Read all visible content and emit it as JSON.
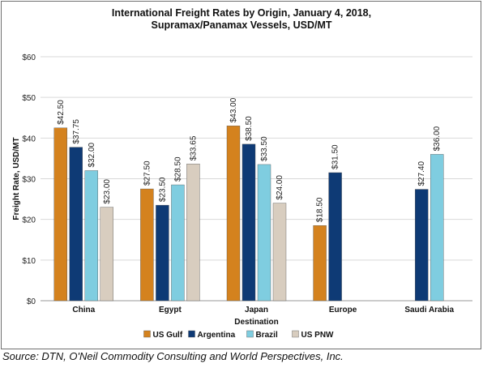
{
  "chart_data": {
    "type": "bar",
    "title_lines": [
      "International Freight Rates by Origin, January 4, 2018,",
      "Supramax/Panamax Vessels, USD/MT"
    ],
    "xlabel": "Destination",
    "ylabel": "Freight Rate, USD/MT",
    "categories": [
      "China",
      "Egypt",
      "Japan",
      "Europe",
      "Saudi Arabia"
    ],
    "ylim": [
      0,
      60
    ],
    "yticks": [
      0,
      10,
      20,
      30,
      40,
      50,
      60
    ],
    "ytick_labels": [
      "$0",
      "$10",
      "$20",
      "$30",
      "$40",
      "$50",
      "$60"
    ],
    "grid": true,
    "legend_position": "bottom",
    "value_label_prefix": "$",
    "series": [
      {
        "name": "US Gulf",
        "color": "#d4821e",
        "values": [
          42.5,
          27.5,
          43.0,
          18.5,
          null
        ]
      },
      {
        "name": "Argentina",
        "color": "#0e3a75",
        "values": [
          37.75,
          23.5,
          38.5,
          31.5,
          27.4
        ]
      },
      {
        "name": "Brazil",
        "color": "#7fcde0",
        "values": [
          32.0,
          28.5,
          33.5,
          null,
          36.0
        ]
      },
      {
        "name": "US PNW",
        "color": "#d8cdbf",
        "values": [
          23.0,
          33.65,
          24.0,
          null,
          null
        ]
      }
    ]
  },
  "source": "Source: DTN, O'Neil Commodity Consulting and World Perspectives, Inc."
}
